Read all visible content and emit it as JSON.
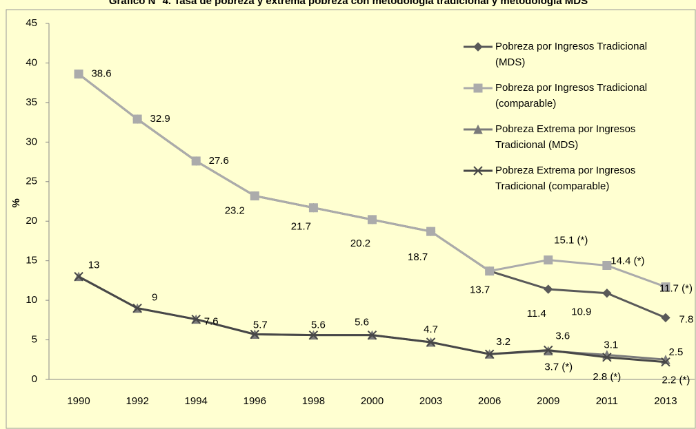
{
  "chart_data": {
    "type": "line",
    "title": "Gráfico N° 4. Tasa de pobreza y extrema pobreza con metodología tradicional y metodología MDS",
    "ylabel": "%",
    "categories": [
      "1990",
      "1992",
      "1994",
      "1996",
      "1998",
      "2000",
      "2003",
      "2006",
      "2009",
      "2011",
      "2013"
    ],
    "ylim": [
      0,
      45
    ],
    "yticks": [
      0,
      5,
      10,
      15,
      20,
      25,
      30,
      35,
      40,
      45
    ],
    "grid": false,
    "legend": "upper right",
    "series": [
      {
        "name": "Pobreza por Ingresos Tradicional (MDS)",
        "color": "#595959",
        "marker": "diamond",
        "data_labels": true,
        "values": [
          38.6,
          32.9,
          27.6,
          23.2,
          21.7,
          20.2,
          18.7,
          13.7,
          11.4,
          10.9,
          7.8
        ]
      },
      {
        "name": "Pobreza por Ingresos Tradicional (comparable)",
        "color": "#ababab",
        "marker": "square",
        "data_labels": false,
        "values": [
          38.6,
          32.9,
          27.6,
          23.2,
          21.7,
          20.2,
          18.7,
          13.7,
          15.1,
          14.4,
          11.7
        ],
        "value_labels": [
          null,
          null,
          null,
          null,
          null,
          null,
          null,
          null,
          "15.1 (*)",
          "14.4 (*)",
          "11.7 (*)"
        ]
      },
      {
        "name": "Pobreza Extrema por Ingresos Tradicional (MDS)",
        "color": "#7a7a7a",
        "marker": "triangle",
        "data_labels": true,
        "values": [
          13,
          9,
          7.6,
          5.7,
          5.6,
          5.6,
          4.7,
          3.2,
          3.6,
          3.1,
          2.5
        ]
      },
      {
        "name": "Pobreza Extrema por Ingresos Tradicional (comparable)",
        "color": "#474747",
        "marker": "x",
        "data_labels": false,
        "values": [
          13,
          9,
          7.6,
          5.7,
          5.6,
          5.6,
          4.7,
          3.2,
          3.7,
          2.8,
          2.2
        ],
        "value_labels": [
          null,
          null,
          null,
          null,
          null,
          null,
          null,
          null,
          "3.7 (*)",
          "2.8 (*)",
          "2.2 (*)"
        ]
      }
    ]
  }
}
